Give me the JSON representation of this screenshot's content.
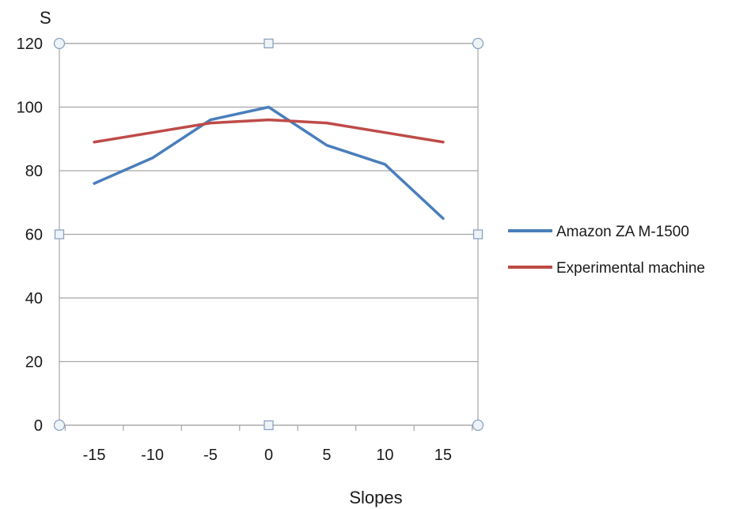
{
  "chart_data": {
    "type": "line",
    "title": "",
    "xlabel": "Slopes",
    "ylabel": "S",
    "x": [
      -15,
      -10,
      -5,
      0,
      5,
      10,
      15
    ],
    "x_ticks": [
      -15,
      -10,
      -5,
      0,
      5,
      10,
      15
    ],
    "y_ticks": [
      0,
      20,
      40,
      60,
      80,
      100,
      120
    ],
    "ylim": [
      0,
      120
    ],
    "grid": "horizontal",
    "legend_position": "right",
    "series": [
      {
        "name": "Amazon ZA M-1500",
        "color": "#4a7ebb",
        "values": [
          76,
          84,
          96,
          100,
          88,
          82,
          65
        ]
      },
      {
        "name": "Experimental machine",
        "color": "#be4b48",
        "values": [
          89,
          92,
          95,
          96,
          95,
          92,
          89
        ]
      }
    ]
  }
}
